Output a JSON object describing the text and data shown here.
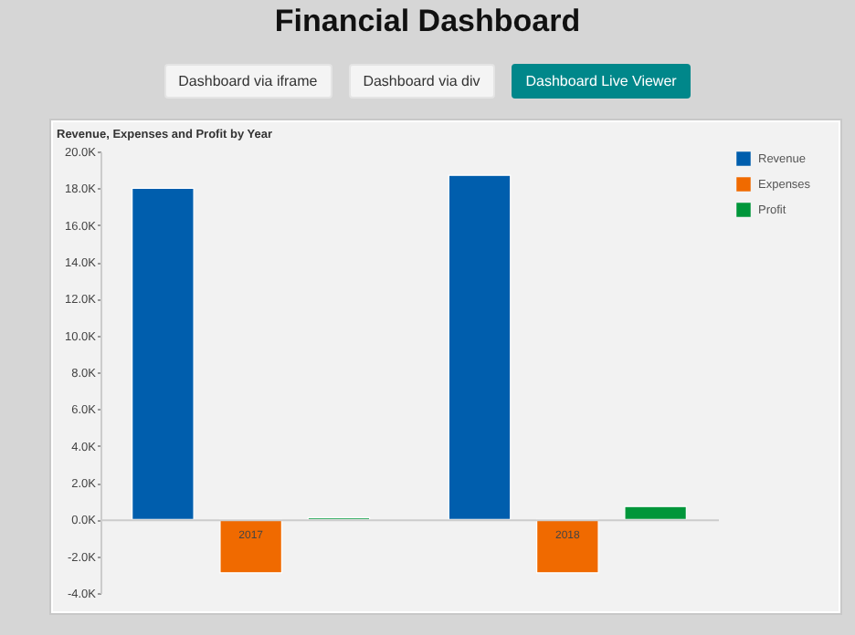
{
  "chart_data": {
    "type": "bar",
    "title": "Financial Dashboard",
    "subtitle": "Revenue, Expenses and Profit by Year",
    "annotations": [
      "Dashboard via iframe",
      "Dashboard via div",
      "Dashboard Live Viewer"
    ],
    "categories": [
      "2017",
      "2018"
    ],
    "series": [
      {
        "name": "Revenue",
        "color": "#005ead",
        "values": [
          18000,
          18700
        ]
      },
      {
        "name": "Expenses",
        "color": "#f06a00",
        "values": [
          -2900,
          -2900
        ]
      },
      {
        "name": "Profit",
        "color": "#00963a",
        "values": [
          100,
          700
        ]
      }
    ],
    "ylim": [
      -4000,
      20000
    ],
    "yticks": [
      {
        "value": -4000,
        "label": "-4.0K"
      },
      {
        "value": -2000,
        "label": "-2.0K"
      },
      {
        "value": 0,
        "label": "0.0K"
      },
      {
        "value": 2000,
        "label": "2.0K"
      },
      {
        "value": 4000,
        "label": "4.0K"
      },
      {
        "value": 6000,
        "label": "6.0K"
      },
      {
        "value": 8000,
        "label": "8.0K"
      },
      {
        "value": 10000,
        "label": "10.0K"
      },
      {
        "value": 12000,
        "label": "12.0K"
      },
      {
        "value": 14000,
        "label": "14.0K"
      },
      {
        "value": 16000,
        "label": "16.0K"
      },
      {
        "value": 18000,
        "label": "18.0K"
      },
      {
        "value": 20000,
        "label": "20.0K"
      }
    ],
    "grid": false,
    "legend": "right"
  }
}
